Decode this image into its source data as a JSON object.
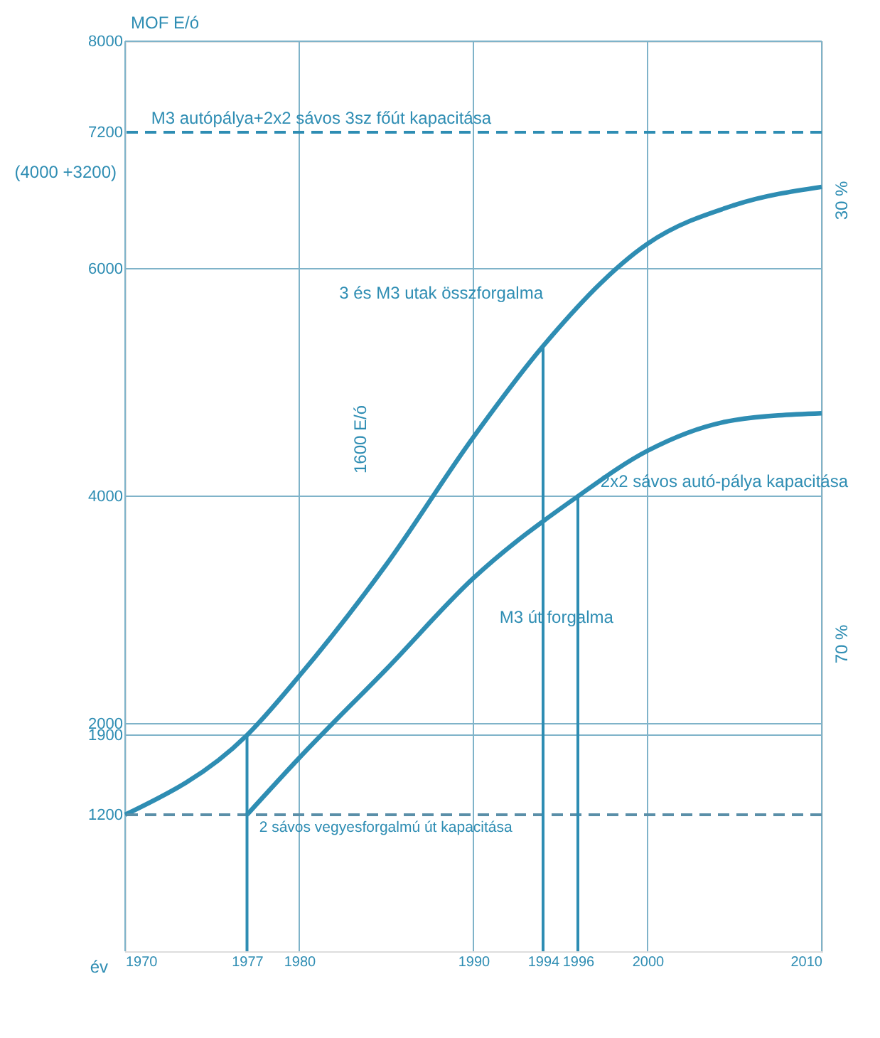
{
  "chart_data": {
    "type": "line",
    "xlabel": "év",
    "ylabel": "MOF E/ó",
    "xlim": [
      1970,
      2010
    ],
    "xticks": [
      1970,
      1977,
      1980,
      1990,
      1994,
      1996,
      2000,
      2010
    ],
    "ylim": [
      0,
      8000
    ],
    "yticks": [
      1200,
      1900,
      2000,
      4000,
      6000,
      7200,
      8000
    ],
    "series": [
      {
        "name": "3 és M3 utak összforgalma",
        "color": "#2e8db3",
        "x": [
          1970,
          1977,
          1980,
          1985,
          1990,
          1994,
          2000,
          2005,
          2010
        ],
        "values": [
          1200,
          1900,
          2420,
          3400,
          4520,
          5320,
          6220,
          6560,
          6720
        ]
      },
      {
        "name": "M3 út forgalma",
        "color": "#2e8db3",
        "x": [
          1977,
          1980,
          1985,
          1990,
          1996,
          2000,
          2005,
          2010
        ],
        "values": [
          1200,
          1700,
          2480,
          3280,
          4000,
          4400,
          4670,
          4730
        ]
      }
    ],
    "ref_lines": [
      {
        "axis": "y",
        "value": 7200,
        "label": "M3 autópálya+2x2 sávos 3sz főút kapacitása",
        "color": "#2e8db3",
        "line_style": "dashed"
      },
      {
        "axis": "y",
        "value": 1200,
        "label": "2 sávos vegyesforgalmú út kapacitása",
        "color": "#5a8fa8",
        "line_style": "dashed"
      },
      {
        "axis": "x",
        "value": 1977,
        "label": null,
        "color": "#2e8db3",
        "line_style": "solid"
      },
      {
        "axis": "x",
        "value": 1994,
        "label": null,
        "color": "#2e8db3",
        "line_style": "solid"
      },
      {
        "axis": "x",
        "value": 1996,
        "label": null,
        "color": "#2e8db3",
        "line_style": "solid"
      }
    ],
    "annotations": [
      "(4000 +3200)",
      "1600 E/ó",
      "30 %",
      "70 %",
      "2x2 sávos autó-pálya kapacitása"
    ],
    "grid": true,
    "marker": "none",
    "line_style": "solid"
  }
}
